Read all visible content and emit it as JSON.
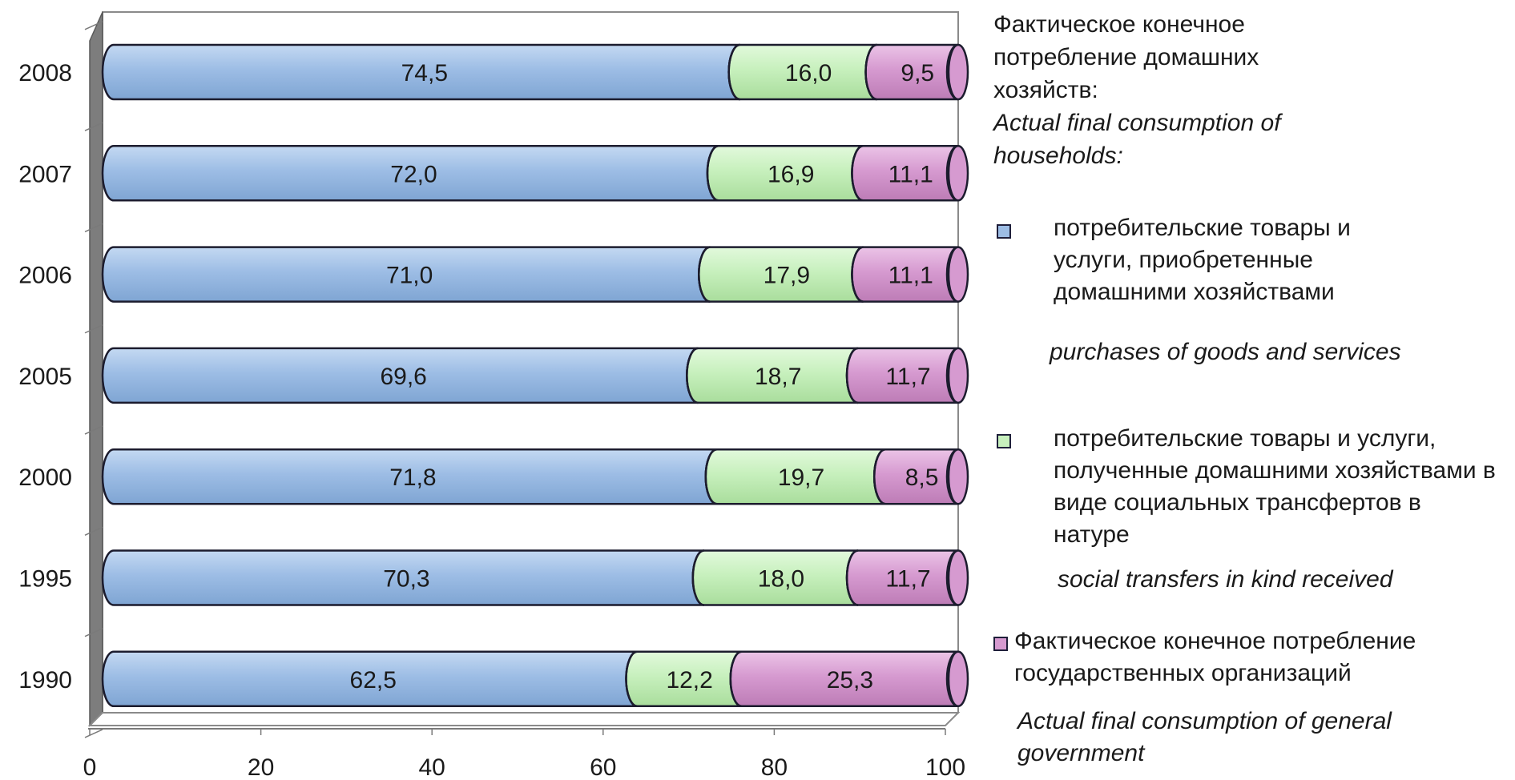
{
  "chart_data": {
    "type": "bar",
    "orientation": "horizontal",
    "stacked": true,
    "title": "",
    "xlabel": "",
    "ylabel": "",
    "xlim": [
      0,
      100
    ],
    "x_ticks": [
      "0",
      "20",
      "40",
      "60",
      "80",
      "100"
    ],
    "categories": [
      "2008",
      "2007",
      "2006",
      "2005",
      "2000",
      "1995",
      "1990"
    ],
    "series": [
      {
        "name": "потребительские товары и услуги, приобретенные домашними хозяйствами",
        "color": "#9dbde5",
        "values": [
          74.5,
          72.0,
          71.0,
          69.6,
          71.8,
          70.3,
          62.5
        ],
        "labels": [
          "74,5",
          "72,0",
          "71,0",
          "69,6",
          "71,8",
          "70,3",
          "62,5"
        ]
      },
      {
        "name": "потребительские товары и услуги, полученные домашними хозяйствами в виде социальных трансфертов в натуре",
        "color": "#c7f0bd",
        "values": [
          16.0,
          16.9,
          17.9,
          18.7,
          19.7,
          18.0,
          12.2
        ],
        "labels": [
          "16,0",
          "16,9",
          "17,9",
          "18,7",
          "19,7",
          "18,0",
          "12,2"
        ]
      },
      {
        "name": "Фактическое конечное потребление государственных организаций",
        "color": "#d69ad0",
        "values": [
          9.5,
          11.1,
          11.1,
          11.7,
          8.5,
          11.7,
          25.3
        ],
        "labels": [
          "9,5",
          "11,1",
          "11,1",
          "11,7",
          "8,5",
          "11,7",
          "25,3"
        ]
      }
    ],
    "grid": true,
    "legend_position": "right"
  },
  "legend": {
    "heading_ru": "Фактическое конечное потребление домашних хозяйств:",
    "heading_en": "Actual final consumption of households:",
    "items": [
      {
        "text_ru": "потребительские товары и услуги,  приобретенные домашними хозяйствами",
        "text_en": "purchases of goods and services",
        "color": "#9dbde5"
      },
      {
        "text_ru": "потребительские товары и услуги, полученные домашними хозяйствами в виде социальных трансфертов в натуре",
        "text_en": "social transfers in kind received",
        "color": "#c7f0bd"
      },
      {
        "text_ru": "Фактическое конечное потребление государственных организаций",
        "text_en": "Actual final consumption of general government",
        "color": "#d69ad0"
      }
    ]
  }
}
